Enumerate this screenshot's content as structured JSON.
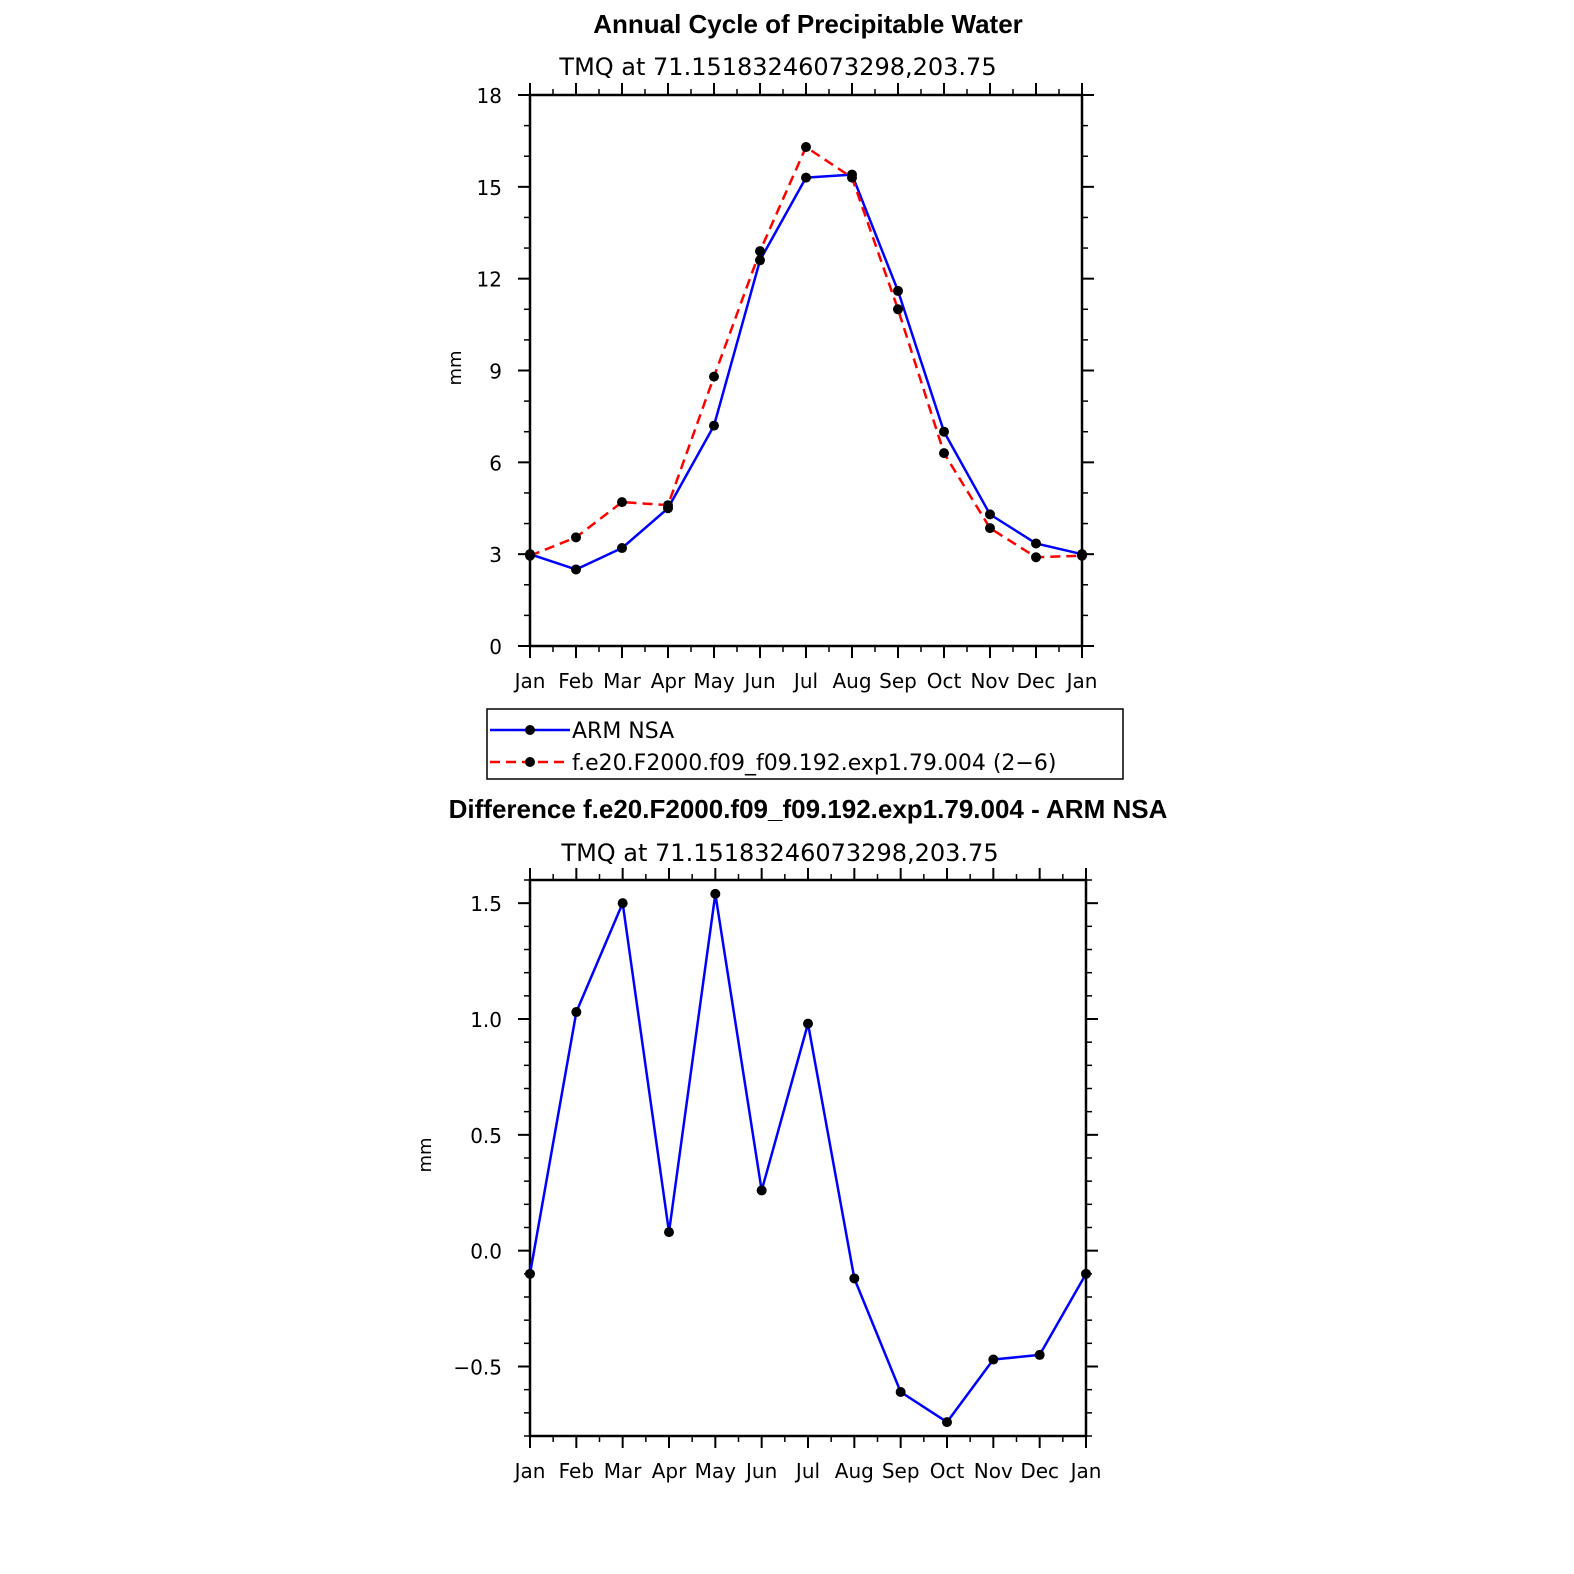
{
  "chart_data": [
    {
      "type": "line",
      "title": "Annual Cycle of Precipitable Water",
      "subtitle": "TMQ at 71.15183246073298,203.75",
      "xlabel": "",
      "ylabel": "mm",
      "categories": [
        "Jan",
        "Feb",
        "Mar",
        "Apr",
        "May",
        "Jun",
        "Jul",
        "Aug",
        "Sep",
        "Oct",
        "Nov",
        "Dec",
        "Jan"
      ],
      "ylim": [
        0,
        18
      ],
      "yticks": [
        "0",
        "3",
        "6",
        "9",
        "12",
        "15",
        "18"
      ],
      "ytick_values": [
        0,
        3,
        6,
        9,
        12,
        15,
        18
      ],
      "series": [
        {
          "name": "ARM NSA",
          "color": "#0000ff",
          "dash": "solid",
          "values": [
            3.0,
            2.5,
            3.2,
            4.5,
            7.2,
            12.6,
            15.3,
            15.4,
            11.6,
            7.0,
            4.3,
            3.35,
            3.0
          ]
        },
        {
          "name": "f.e20.F2000.f09_f09.192.exp1.79.004 (2−6)",
          "color": "#ff0000",
          "dash": "dashed",
          "values": [
            2.95,
            3.55,
            4.7,
            4.6,
            8.8,
            12.9,
            16.3,
            15.3,
            11.0,
            6.3,
            3.85,
            2.9,
            2.95
          ]
        }
      ],
      "legend": "bottom"
    },
    {
      "type": "line",
      "title": "Difference f.e20.F2000.f09_f09.192.exp1.79.004 - ARM NSA",
      "subtitle": "TMQ at 71.15183246073298,203.75",
      "xlabel": "",
      "ylabel": "mm",
      "categories": [
        "Jan",
        "Feb",
        "Mar",
        "Apr",
        "May",
        "Jun",
        "Jul",
        "Aug",
        "Sep",
        "Oct",
        "Nov",
        "Dec",
        "Jan"
      ],
      "ylim": [
        -0.8,
        1.6
      ],
      "yticks": [
        "−0.5",
        "0.0",
        "0.5",
        "1.0",
        "1.5"
      ],
      "ytick_values": [
        -0.5,
        0.0,
        0.5,
        1.0,
        1.5
      ],
      "series": [
        {
          "color": "#0000ff",
          "dash": "solid",
          "values": [
            -0.1,
            1.03,
            1.5,
            0.08,
            1.54,
            0.26,
            0.98,
            -0.12,
            -0.61,
            -0.74,
            -0.47,
            -0.45,
            -0.1
          ]
        }
      ]
    }
  ]
}
